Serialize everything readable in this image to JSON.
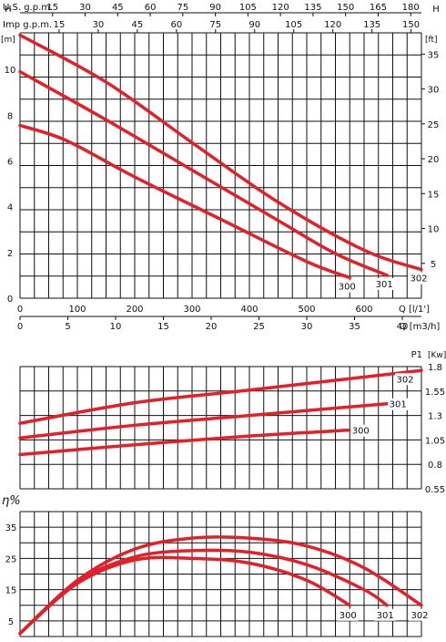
{
  "colors": {
    "curve": "#e3202a",
    "grid": "#111111",
    "text": "#111111",
    "background": "#ffffff"
  },
  "chart_data": [
    {
      "type": "line",
      "title": "",
      "top_scales": [
        {
          "label": "U.S. g.p.m.",
          "ticks": [
            "15",
            "30",
            "45",
            "60",
            "75",
            "90",
            "105",
            "120",
            "135",
            "150",
            "165",
            "180"
          ]
        },
        {
          "label": "Imp g.p.m.",
          "ticks": [
            "15",
            "30",
            "45",
            "60",
            "75",
            "90",
            "105",
            "120",
            "135",
            "150"
          ]
        }
      ],
      "xlabel": "Q [l/1']",
      "xticks": [
        "0",
        "100",
        "200",
        "300",
        "400",
        "500",
        "600"
      ],
      "xlim": [
        0,
        700
      ],
      "x2label": "Q [m3/h]",
      "x2ticks": [
        "0",
        "5",
        "10",
        "15",
        "20",
        "25",
        "30",
        "35",
        "40"
      ],
      "ylabel": "H",
      "yunit": "[m]",
      "yticks": [
        "0",
        "2",
        "4",
        "6",
        "8",
        "10"
      ],
      "ylim": [
        0,
        11.6
      ],
      "y2label": "H",
      "y2unit": "[ft]",
      "y2ticks": [
        "5",
        "10",
        "15",
        "20",
        "25",
        "30",
        "35"
      ],
      "grid": true,
      "series": [
        {
          "name": "300",
          "x": [
            0,
            80,
            200,
            350,
            500,
            575
          ],
          "values": [
            7.55,
            6.9,
            5.3,
            3.45,
            1.6,
            0.9
          ]
        },
        {
          "name": "301",
          "x": [
            0,
            150,
            300,
            450,
            550,
            640
          ],
          "values": [
            9.9,
            7.8,
            5.6,
            3.4,
            1.95,
            1.0
          ]
        },
        {
          "name": "302",
          "x": [
            0,
            150,
            300,
            450,
            600,
            700
          ],
          "values": [
            11.5,
            9.45,
            6.8,
            4.2,
            2.1,
            1.25
          ]
        }
      ]
    },
    {
      "type": "line",
      "title": "",
      "ylabel": "P1",
      "yunit": "[Kw]",
      "yticks": [
        "0.55",
        "0.8",
        "1.05",
        "1.3",
        "1.55",
        "1.8"
      ],
      "ylim": [
        0.55,
        1.8
      ],
      "xlim": [
        0,
        700
      ],
      "grid": true,
      "series": [
        {
          "name": "300",
          "x": [
            0,
            200,
            400,
            575
          ],
          "values": [
            0.9,
            1.0,
            1.09,
            1.15
          ]
        },
        {
          "name": "301",
          "x": [
            0,
            200,
            400,
            640
          ],
          "values": [
            1.07,
            1.2,
            1.3,
            1.42
          ]
        },
        {
          "name": "302",
          "x": [
            0,
            200,
            400,
            700
          ],
          "values": [
            1.22,
            1.43,
            1.56,
            1.76
          ]
        }
      ]
    },
    {
      "type": "line",
      "title": "",
      "ylabel": "η%",
      "yticks": [
        "5",
        "15",
        "25",
        "35"
      ],
      "ylim": [
        0,
        40
      ],
      "xlim": [
        0,
        700
      ],
      "grid": true,
      "series": [
        {
          "name": "300",
          "x": [
            0,
            100,
            200,
            300,
            400,
            500,
            575
          ],
          "values": [
            1,
            17,
            24.5,
            25,
            23.5,
            18,
            10
          ]
        },
        {
          "name": "301",
          "x": [
            0,
            100,
            200,
            300,
            400,
            500,
            600,
            640
          ],
          "values": [
            1,
            17.5,
            25.5,
            27.5,
            27,
            23,
            15,
            10
          ]
        },
        {
          "name": "302",
          "x": [
            0,
            100,
            200,
            300,
            400,
            500,
            600,
            700
          ],
          "values": [
            1,
            18,
            28,
            31.5,
            31.5,
            29,
            22,
            10
          ]
        }
      ]
    }
  ]
}
